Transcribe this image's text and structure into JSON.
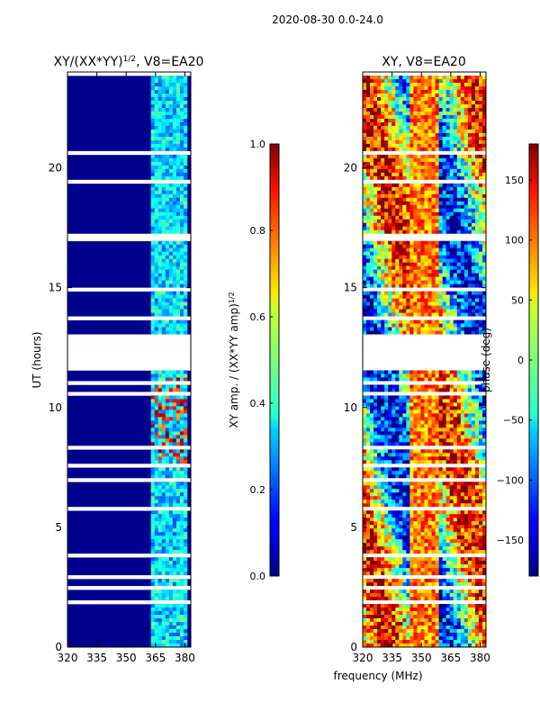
{
  "suptitle": "2020-08-30 0.0-24.0",
  "xlabel": "frequency (MHz)",
  "chart_data": [
    {
      "type": "heatmap",
      "title": "XY/(XX*YY)",
      "title_exp": "1/2",
      "title_suffix": ", V8=EA20",
      "ylabel": "UT (hours)",
      "x_ticks": [
        320,
        335,
        350,
        365,
        380
      ],
      "x_range": [
        320,
        383
      ],
      "y_ticks": [
        0,
        5,
        10,
        15,
        20
      ],
      "y_range": [
        0,
        24
      ],
      "colorbar": {
        "label": "XY amp. / (XX*YY amp)",
        "label_exp": "1/2",
        "ticks": [
          "0.0",
          "0.2",
          "0.4",
          "0.6",
          "0.8",
          "1.0"
        ],
        "range": [
          0,
          1
        ],
        "colormap": "jet"
      }
    },
    {
      "type": "heatmap",
      "title": "XY, V8=EA20",
      "x_ticks": [
        320,
        335,
        350,
        365,
        380
      ],
      "x_range": [
        320,
        383
      ],
      "y_ticks": [
        0,
        5,
        10,
        15,
        20
      ],
      "y_range": [
        0,
        24
      ],
      "colorbar": {
        "label": "phase (deg)",
        "ticks": [
          "150",
          "100",
          "50",
          "0",
          "−50",
          "−100",
          "−150"
        ],
        "range": [
          -180,
          180
        ],
        "colormap": "jet"
      }
    }
  ]
}
